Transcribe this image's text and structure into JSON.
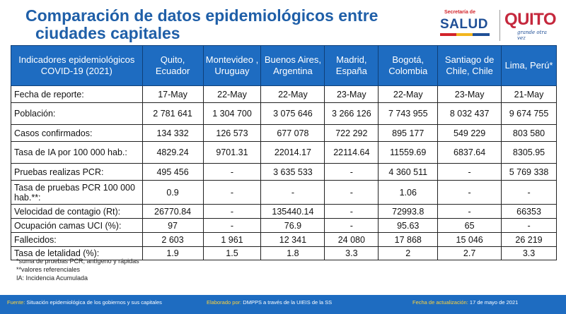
{
  "title": {
    "line1": "Comparación de datos epidemiológicos entre",
    "line2": "ciudades capitales"
  },
  "logos": {
    "salud_secretaria": "Secretaría de",
    "salud_word": "SALUD",
    "quito_word": "QUITO",
    "quito_tag": "grande otra vez"
  },
  "table": {
    "header_indicator": "Indicadores epidemiológicos COVID-19 (2021)",
    "cities": [
      "Quito, Ecuador",
      "Montevideo , Uruguay",
      "Buenos Aires, Argentina",
      "Madrid, España",
      "Bogotá, Colombia",
      "Santiago de Chile, Chile",
      "Lima, Perú*"
    ],
    "rows": [
      {
        "label": "Fecha de reporte:",
        "values": [
          "17-May",
          "22-May",
          "22-May",
          "23-May",
          "22-May",
          "23-May",
          "21-May"
        ]
      },
      {
        "label": "Población:",
        "values": [
          "2 781 641",
          "1 304 700",
          "3 075 646",
          "3 266 126",
          "7 743 955",
          "8 032 437",
          "9 674 755"
        ]
      },
      {
        "label": "Casos confirmados:",
        "values": [
          "134 332",
          "126 573",
          "677 078",
          "722 292",
          "895 177",
          "549 229",
          "803 580"
        ]
      },
      {
        "label": "Tasa de IA por 100 000 hab.:",
        "values": [
          "4829.24",
          "9701.31",
          "22014.17",
          "22114.64",
          "11559.69",
          "6837.64",
          "8305.95"
        ]
      },
      {
        "label": "Pruebas realizas PCR:",
        "values": [
          "495 456",
          "-",
          "3 635 533",
          "-",
          "4 360 511",
          "-",
          "5 769 338"
        ]
      },
      {
        "label": "Tasa de pruebas PCR 100 000 hab.**:",
        "values": [
          "0.9",
          "-",
          "-",
          "-",
          "1.06",
          "-",
          "-"
        ]
      },
      {
        "label": "Velocidad de contagio (Rt):",
        "values": [
          "26770.84",
          "-",
          "135440.14",
          "-",
          "72993.8",
          "-",
          "66353"
        ]
      },
      {
        "label": "Ocupación camas UCI (%):",
        "values": [
          "97",
          "-",
          "76.9",
          "-",
          "95.63",
          "65",
          "-"
        ]
      },
      {
        "label": "Fallecidos:",
        "values": [
          "2 603",
          "1 961",
          "12 341",
          "24 080",
          "17 868",
          "15 046",
          "26 219"
        ]
      },
      {
        "label": "Tasa de letalidad (%):",
        "values": [
          "1.9",
          "1.5",
          "1.8",
          "3.3",
          "2",
          "2.7",
          "3.3"
        ]
      }
    ]
  },
  "notes": [
    "*suma de pruebas PCR, antígeno y rápidas",
    "**valores referenciales",
    "IA: Incidencia Acumulada"
  ],
  "footer": {
    "fuente_key": "Fuente:",
    "fuente_val": "Situación epidemiológica de los gobiernos y sus capitales",
    "elaborado_key": "Elaborado por:",
    "elaborado_val": "DMPPS a través de la UIEIS de la SS",
    "fecha_key": "Fecha de actualización:",
    "fecha_val": "17 de mayo de 2021"
  },
  "colors": {
    "title": "#1f5fa8",
    "header_bg": "#1e6cc1",
    "footer_bg": "#1e6cc1",
    "footer_key": "#ffd43b"
  }
}
